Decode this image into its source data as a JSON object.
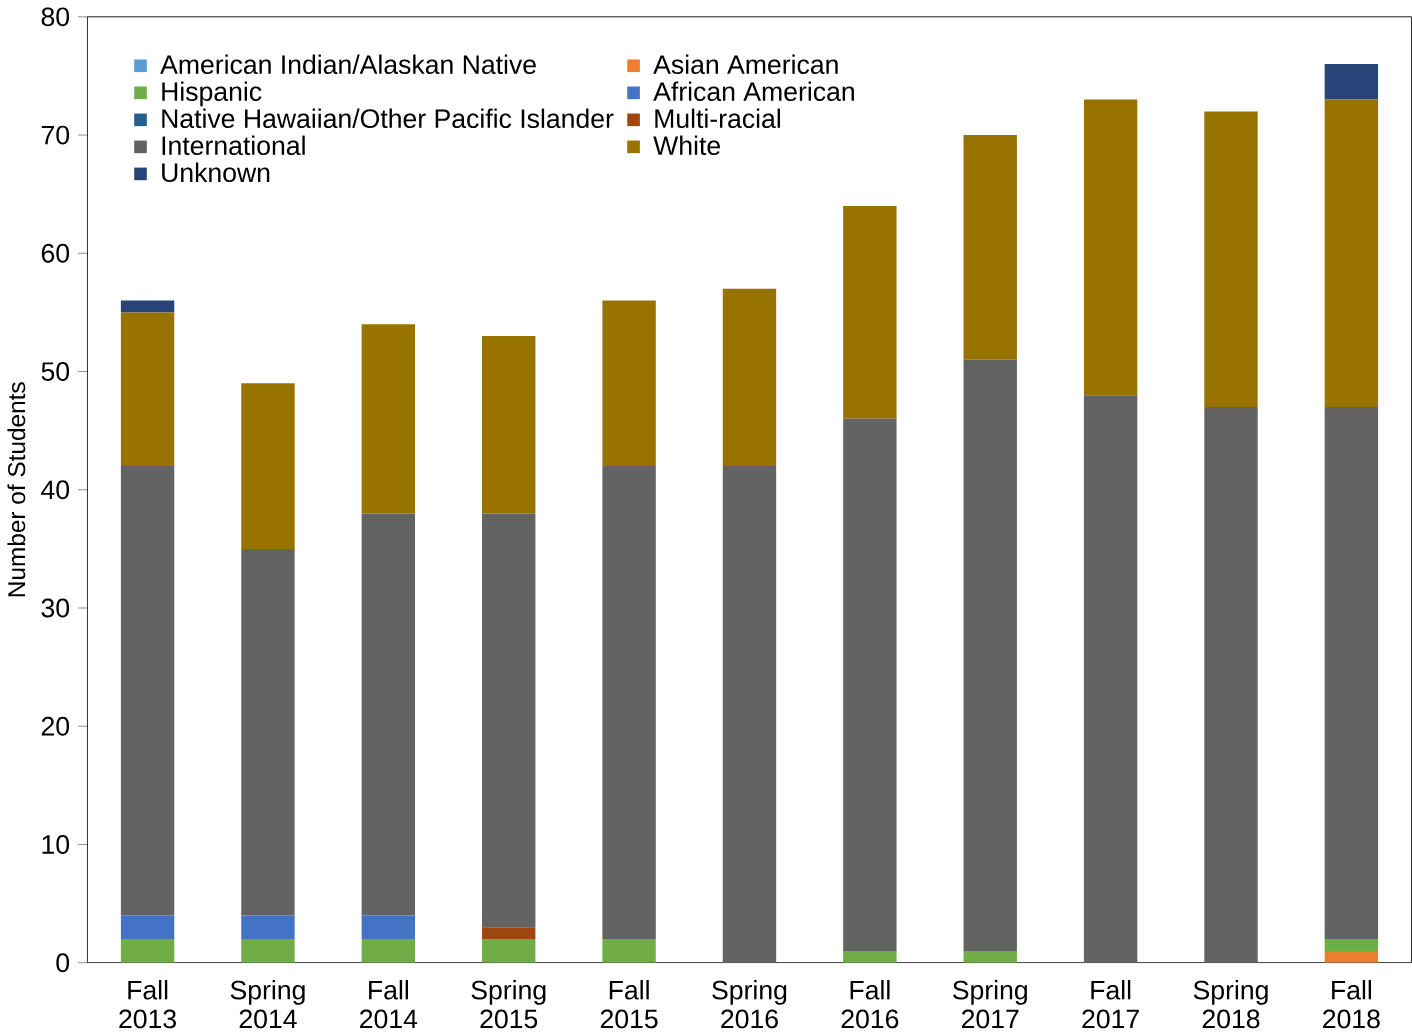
{
  "chart_data": {
    "type": "bar",
    "stacked": true,
    "ylabel": "Number of Students",
    "legend": "top left",
    "categories": [
      "Fall 2013",
      "Spring 2014",
      "Fall 2014",
      "Spring 2015",
      "Fall 2015",
      "Spring 2016",
      "Fall 2016",
      "Spring 2017",
      "Fall 2017",
      "Spring 2018",
      "Fall 2018"
    ],
    "ylim": [
      0,
      80
    ],
    "yticks": [
      0,
      10,
      20,
      30,
      40,
      50,
      60,
      70,
      80
    ],
    "series": [
      {
        "name": "American Indian/Alaskan Native",
        "color": "#5b9bd5",
        "values": [
          0,
          0,
          0,
          0,
          0,
          0,
          0,
          0,
          0,
          0,
          0
        ]
      },
      {
        "name": "Asian American",
        "color": "#ed7d31",
        "values": [
          0,
          0,
          0,
          0,
          0,
          0,
          0,
          0,
          0,
          0,
          1
        ]
      },
      {
        "name": "Hispanic",
        "color": "#70ad47",
        "values": [
          2,
          2,
          2,
          2,
          2,
          0,
          1,
          1,
          0,
          0,
          1
        ]
      },
      {
        "name": "African American",
        "color": "#4472c4",
        "values": [
          2,
          2,
          2,
          0,
          0,
          0,
          0,
          0,
          0,
          0,
          0
        ]
      },
      {
        "name": "Native Hawaiian/Other Pacific Islander",
        "color": "#255e91",
        "values": [
          0,
          0,
          0,
          0,
          0,
          0,
          0,
          0,
          0,
          0,
          0
        ]
      },
      {
        "name": "Multi-racial",
        "color": "#9e480e",
        "values": [
          0,
          0,
          0,
          1,
          0,
          0,
          0,
          0,
          0,
          0,
          0
        ]
      },
      {
        "name": "International",
        "color": "#636363",
        "values": [
          38,
          31,
          34,
          35,
          40,
          42,
          45,
          50,
          48,
          47,
          45
        ]
      },
      {
        "name": "White",
        "color": "#997300",
        "values": [
          13,
          14,
          16,
          15,
          14,
          15,
          18,
          19,
          25,
          25,
          26
        ]
      },
      {
        "name": "Unknown",
        "color": "#264478",
        "values": [
          1,
          0,
          0,
          0,
          0,
          0,
          0,
          0,
          0,
          0,
          3
        ]
      }
    ]
  }
}
